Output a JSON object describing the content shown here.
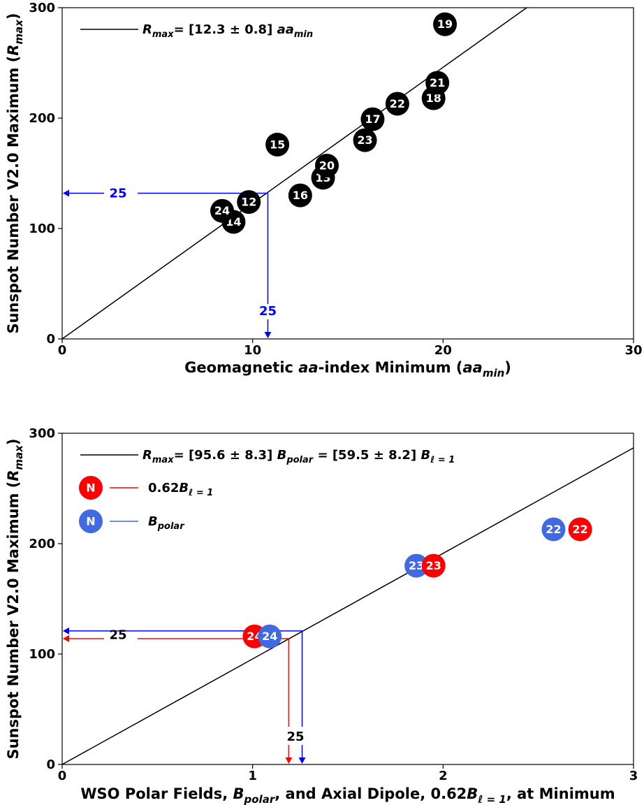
{
  "chart_data": [
    {
      "type": "scatter",
      "xlabel_parts": [
        "Geomagnetic ",
        "aa",
        "-index Minimum (",
        "aa",
        "min",
        ")"
      ],
      "ylabel_parts": [
        "Sunspot Number V2.0 Maximum (",
        "R",
        "max",
        ")"
      ],
      "xlim": [
        0,
        30
      ],
      "ylim": [
        0,
        300
      ],
      "xticks": [
        0,
        10,
        20,
        30
      ],
      "yticks": [
        0,
        100,
        200,
        300
      ],
      "legend": {
        "placement": "top-left",
        "line_text": "= [12.3 ± 0.8] ",
        "sym_R": "R",
        "sym_max": "max",
        "sym_aa": "aa",
        "sym_min": "min"
      },
      "fit_slope": 12.3,
      "points": [
        {
          "label": "12",
          "x": 9.8,
          "y": 124
        },
        {
          "label": "13",
          "x": 13.7,
          "y": 146
        },
        {
          "label": "14",
          "x": 9.0,
          "y": 106
        },
        {
          "label": "15",
          "x": 11.3,
          "y": 176
        },
        {
          "label": "16",
          "x": 12.5,
          "y": 130
        },
        {
          "label": "17",
          "x": 16.3,
          "y": 199
        },
        {
          "label": "18",
          "x": 19.5,
          "y": 218
        },
        {
          "label": "19",
          "x": 20.1,
          "y": 285
        },
        {
          "label": "20",
          "x": 13.9,
          "y": 157
        },
        {
          "label": "21",
          "x": 19.7,
          "y": 232
        },
        {
          "label": "22",
          "x": 17.6,
          "y": 213
        },
        {
          "label": "23",
          "x": 15.9,
          "y": 180
        },
        {
          "label": "24",
          "x": 8.4,
          "y": 116
        }
      ],
      "prediction": {
        "label": "25",
        "x": 10.8,
        "y": 132,
        "color": "#0000ff"
      }
    },
    {
      "type": "scatter",
      "xlabel_parts": [
        "WSO Polar Fields, ",
        "B",
        "polar",
        ",  and Axial Dipole, 0.62",
        "B",
        "ℓ = 1",
        ",  at Minimum"
      ],
      "ylabel_parts": [
        "Sunspot Number V2.0 Maximum (",
        "R",
        "max",
        ")"
      ],
      "xlim": [
        0,
        3
      ],
      "ylim": [
        0,
        300
      ],
      "xticks": [
        0,
        1,
        2,
        3
      ],
      "yticks": [
        0,
        100,
        200,
        300
      ],
      "legend": {
        "placement": "top-left",
        "line_text_a": "= [95.6 ± 8.3] ",
        "line_text_b": "  = [59.5 ± 8.2] ",
        "sym_R": "R",
        "sym_max": "max",
        "sym_B": "B",
        "sym_polar": "polar",
        "sym_l1": "ℓ = 1",
        "marker_letter": "N",
        "red_entry_prefix": "0.62",
        "red_color": "#ff0000",
        "blue_color": "#4169e1"
      },
      "fit_slope": 95.6,
      "series": [
        {
          "name": "0.62Bℓ=1",
          "color": "#ff0000",
          "points": [
            {
              "label": "22",
              "x": 2.72,
              "y": 213
            },
            {
              "label": "23",
              "x": 1.95,
              "y": 180
            },
            {
              "label": "24",
              "x": 1.01,
              "y": 116
            }
          ]
        },
        {
          "name": "Bpolar",
          "color": "#4169e1",
          "points": [
            {
              "label": "22",
              "x": 2.58,
              "y": 213
            },
            {
              "label": "23",
              "x": 1.86,
              "y": 180
            },
            {
              "label": "24",
              "x": 1.09,
              "y": 116
            }
          ]
        }
      ],
      "prediction": {
        "label": "25",
        "red": {
          "x": 1.19,
          "y": 114
        },
        "blue": {
          "x": 1.26,
          "y": 121
        }
      }
    }
  ]
}
